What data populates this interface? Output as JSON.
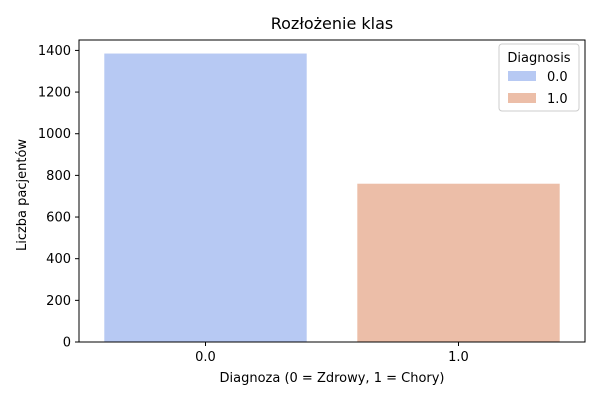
{
  "chart_data": {
    "type": "bar",
    "title": "Rozłożenie klas",
    "xlabel": "Diagnoza (0 = Zdrowy, 1 = Chory)",
    "ylabel": "Liczba pacjentów",
    "categories": [
      "0.0",
      "1.0"
    ],
    "values": [
      1385,
      760
    ],
    "colors": [
      "#b7c9f3",
      "#ecbea8"
    ],
    "ylim": [
      0,
      1450
    ],
    "yticks": [
      0,
      200,
      400,
      600,
      800,
      1000,
      1200,
      1400
    ],
    "grid": false,
    "legend": {
      "title": "Diagnosis",
      "placement": "top-right",
      "entries": [
        {
          "label": "0.0",
          "color": "#b7c9f3"
        },
        {
          "label": "1.0",
          "color": "#ecbea8"
        }
      ]
    }
  }
}
